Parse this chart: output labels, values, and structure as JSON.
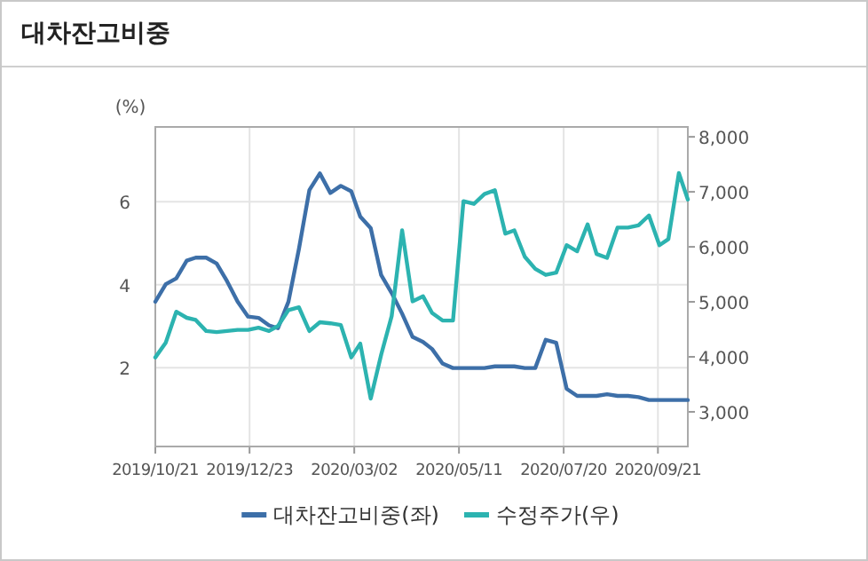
{
  "chart_data": {
    "type": "line",
    "title": "대차잔고비중",
    "ylabel": "(%)",
    "x": [
      "2019-10-21",
      "2019-10-28",
      "2019-11-04",
      "2019-11-11",
      "2019-11-17",
      "2019-11-24",
      "2019-12-01",
      "2019-12-08",
      "2019-12-15",
      "2019-12-22",
      "2019-12-29",
      "2020-01-05",
      "2020-01-11",
      "2020-01-18",
      "2020-01-25",
      "2020-02-01",
      "2020-02-08",
      "2020-02-15",
      "2020-02-22",
      "2020-02-29",
      "2020-03-06",
      "2020-03-13",
      "2020-03-20",
      "2020-03-27",
      "2020-04-03",
      "2020-04-10",
      "2020-04-17",
      "2020-04-23",
      "2020-04-30",
      "2020-05-07",
      "2020-05-14",
      "2020-05-21",
      "2020-05-28",
      "2020-06-04",
      "2020-06-11",
      "2020-06-17",
      "2020-06-24",
      "2020-07-01",
      "2020-07-08",
      "2020-07-15",
      "2020-07-22",
      "2020-07-29",
      "2020-08-05",
      "2020-08-11",
      "2020-08-18",
      "2020-08-25",
      "2020-09-01",
      "2020-09-08",
      "2020-09-15",
      "2020-09-22",
      "2020-09-28",
      "2020-10-05",
      "2020-10-11"
    ],
    "series": [
      {
        "name": "대차잔고비중(좌)",
        "color": "#3d6fa8",
        "values": [
          3.59,
          4.01,
          4.15,
          4.58,
          4.65,
          4.65,
          4.51,
          4.08,
          3.59,
          3.23,
          3.2,
          3.02,
          2.95,
          3.59,
          4.86,
          6.28,
          6.68,
          6.21,
          6.38,
          6.25,
          5.64,
          5.36,
          4.23,
          3.8,
          3.3,
          2.74,
          2.62,
          2.45,
          2.1,
          1.99,
          1.99,
          1.99,
          1.99,
          2.03,
          2.03,
          2.03,
          1.99,
          1.99,
          2.67,
          2.6,
          1.49,
          1.32,
          1.32,
          1.32,
          1.36,
          1.32,
          1.32,
          1.29,
          1.22,
          1.22,
          1.22,
          1.22,
          1.22
        ]
      },
      {
        "name": "수정주가(우)",
        "color": "#2cb3b0",
        "axis": "y2",
        "values": [
          3990,
          4260,
          4820,
          4710,
          4670,
          4470,
          4450,
          4470,
          4490,
          4490,
          4530,
          4470,
          4560,
          4850,
          4900,
          4470,
          4630,
          4610,
          4580,
          3990,
          4240,
          3240,
          4040,
          4740,
          6300,
          5010,
          5100,
          4800,
          4660,
          4660,
          6830,
          6780,
          6960,
          7030,
          6240,
          6300,
          5820,
          5600,
          5490,
          5530,
          6030,
          5920,
          6410,
          5870,
          5800,
          6350,
          6350,
          6390,
          6570,
          6030,
          6140,
          7340,
          6860
        ]
      }
    ],
    "xlim": [
      "2019-10-21",
      "2020-10-11"
    ],
    "xticks": [
      {
        "value": "2019-10-21",
        "label": "2019/10/21"
      },
      {
        "value": "2019-12-23",
        "label": "2019/12/23"
      },
      {
        "value": "2020-03-02",
        "label": "2020/03/02"
      },
      {
        "value": "2020-05-11",
        "label": "2020/05/11"
      },
      {
        "value": "2020-07-20",
        "label": "2020/07/20"
      },
      {
        "value": "2020-09-21",
        "label": "2020/09/21"
      }
    ],
    "ylim": [
      0.1,
      7.8
    ],
    "yticks": [
      2,
      4,
      6
    ],
    "y2lim": [
      2370,
      8180
    ],
    "y2ticks": [
      {
        "value": 3000,
        "label": "3,000"
      },
      {
        "value": 4000,
        "label": "4,000"
      },
      {
        "value": 5000,
        "label": "5,000"
      },
      {
        "value": 6000,
        "label": "6,000"
      },
      {
        "value": 7000,
        "label": "7,000"
      },
      {
        "value": 8000,
        "label": "8,000"
      }
    ],
    "grid": true,
    "legend": "bottom"
  }
}
